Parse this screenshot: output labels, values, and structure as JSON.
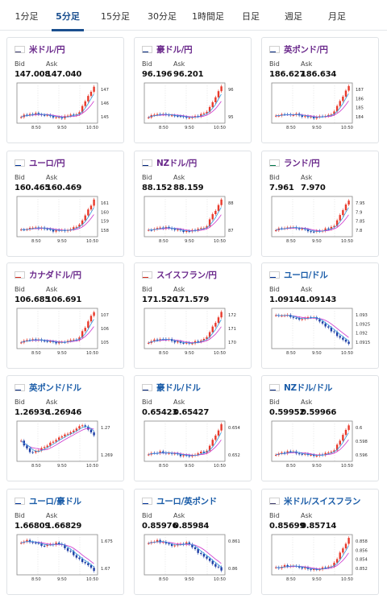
{
  "tabs": [
    {
      "label": "1分足"
    },
    {
      "label": "5分足"
    },
    {
      "label": "15分足"
    },
    {
      "label": "30分足"
    },
    {
      "label": "1時間足"
    },
    {
      "label": "日足"
    },
    {
      "label": "週足"
    },
    {
      "label": "月足"
    }
  ],
  "active_tab": "5分足",
  "bid_label": "Bid",
  "ask_label": "Ask",
  "cards": [
    {
      "pair": "米ドル/円",
      "bid": "147.008",
      "ask": "147.040",
      "flag": "usd-jpy-flag-icon",
      "chart_data": {
        "type": "candlestick",
        "x_ticks": [
          "8:50",
          "9:50",
          "10:50"
        ],
        "y_ticks": [
          "147",
          "146",
          "145"
        ],
        "trend": "up"
      }
    },
    {
      "pair": "豪ドル/円",
      "bid": "96.196",
      "ask": "96.201",
      "flag": "aud-jpy-flag-icon",
      "chart_data": {
        "type": "candlestick",
        "x_ticks": [
          "8:50",
          "9:50",
          "10:50"
        ],
        "y_ticks": [
          "96",
          "95"
        ],
        "trend": "up"
      }
    },
    {
      "pair": "英ポンド/円",
      "bid": "186.627",
      "ask": "186.634",
      "flag": "gbp-jpy-flag-icon",
      "chart_data": {
        "type": "candlestick",
        "x_ticks": [
          "8:50",
          "9:50",
          "10:50"
        ],
        "y_ticks": [
          "187",
          "186",
          "185",
          "184"
        ],
        "trend": "up"
      }
    },
    {
      "pair": "ユーロ/円",
      "bid": "160.465",
      "ask": "160.469",
      "flag": "eur-jpy-flag-icon",
      "chart_data": {
        "type": "candlestick",
        "x_ticks": [
          "8:50",
          "9:50",
          "10:50"
        ],
        "y_ticks": [
          "161",
          "160",
          "159",
          "158"
        ],
        "trend": "up"
      }
    },
    {
      "pair": "NZドル/円",
      "bid": "88.152",
      "ask": "88.159",
      "flag": "nzd-jpy-flag-icon",
      "chart_data": {
        "type": "candlestick",
        "x_ticks": [
          "8:50",
          "9:50",
          "10:50"
        ],
        "y_ticks": [
          "88",
          "87"
        ],
        "trend": "up"
      }
    },
    {
      "pair": "ランド/円",
      "bid": "7.961",
      "ask": "7.970",
      "flag": "zar-jpy-flag-icon",
      "chart_data": {
        "type": "candlestick",
        "x_ticks": [
          "8:50",
          "9:50",
          "10:50"
        ],
        "y_ticks": [
          "7.95",
          "7.9",
          "7.85",
          "7.8"
        ],
        "trend": "up"
      }
    },
    {
      "pair": "カナダドル/円",
      "bid": "106.685",
      "ask": "106.691",
      "flag": "cad-jpy-flag-icon",
      "chart_data": {
        "type": "candlestick",
        "x_ticks": [
          "8:50",
          "9:50",
          "10:50"
        ],
        "y_ticks": [
          "107",
          "106",
          "105"
        ],
        "trend": "up"
      }
    },
    {
      "pair": "スイスフラン/円",
      "bid": "171.520",
      "ask": "171.579",
      "flag": "chf-jpy-flag-icon",
      "chart_data": {
        "type": "candlestick",
        "x_ticks": [
          "8:50",
          "9:50",
          "10:50"
        ],
        "y_ticks": [
          "172",
          "171",
          "170"
        ],
        "trend": "up"
      }
    },
    {
      "pair": "ユーロ/ドル",
      "bid": "1.09140",
      "ask": "1.09143",
      "flag": "eur-usd-flag-icon",
      "chart_data": {
        "type": "candlestick",
        "x_ticks": [
          "8:50",
          "9:50",
          "10:50"
        ],
        "y_ticks": [
          "1.093",
          "1.0925",
          "1.092",
          "1.0915"
        ],
        "trend": "down"
      }
    },
    {
      "pair": "英ポンド/ドル",
      "bid": "1.26936",
      "ask": "1.26946",
      "flag": "gbp-usd-flag-icon",
      "chart_data": {
        "type": "candlestick",
        "x_ticks": [
          "8:50",
          "9:50",
          "10:50"
        ],
        "y_ticks": [
          "1.27",
          "1.269"
        ],
        "trend": "updown"
      }
    },
    {
      "pair": "豪ドル/ドル",
      "bid": "0.65423",
      "ask": "0.65427",
      "flag": "aud-usd-flag-icon",
      "chart_data": {
        "type": "candlestick",
        "x_ticks": [
          "8:50",
          "9:50",
          "10:50"
        ],
        "y_ticks": [
          "0.654",
          "0.652"
        ],
        "trend": "up"
      }
    },
    {
      "pair": "NZドル/ドル",
      "bid": "0.59952",
      "ask": "0.59966",
      "flag": "nzd-usd-flag-icon",
      "chart_data": {
        "type": "candlestick",
        "x_ticks": [
          "8:50",
          "9:50",
          "10:50"
        ],
        "y_ticks": [
          "0.6",
          "0.598",
          "0.596"
        ],
        "trend": "up"
      }
    },
    {
      "pair": "ユーロ/豪ドル",
      "bid": "1.66809",
      "ask": "1.66829",
      "flag": "eur-aud-flag-icon",
      "chart_data": {
        "type": "candlestick",
        "x_ticks": [
          "8:50",
          "9:50",
          "10:50"
        ],
        "y_ticks": [
          "1.675",
          "1.67"
        ],
        "trend": "down"
      }
    },
    {
      "pair": "ユーロ/英ポンド",
      "bid": "0.85976",
      "ask": "0.85984",
      "flag": "eur-gbp-flag-icon",
      "chart_data": {
        "type": "candlestick",
        "x_ticks": [
          "8:50",
          "9:50",
          "10:50"
        ],
        "y_ticks": [
          "0.861",
          "0.86"
        ],
        "trend": "down"
      }
    },
    {
      "pair": "米ドル/スイスフラン",
      "bid": "0.85699",
      "ask": "0.85714",
      "flag": "usd-chf-flag-icon",
      "chart_data": {
        "type": "candlestick",
        "x_ticks": [
          "8:50",
          "9:50",
          "10:50"
        ],
        "y_ticks": [
          "0.858",
          "0.856",
          "0.854",
          "0.852"
        ],
        "trend": "up"
      }
    }
  ],
  "colors": {
    "up": "#e8392b",
    "down": "#1f3fa6",
    "ma1": "#cc33cc",
    "ma2": "#3399dd",
    "pair_purple": "#6b2a8c",
    "pair_blue": "#1a5ca8"
  }
}
